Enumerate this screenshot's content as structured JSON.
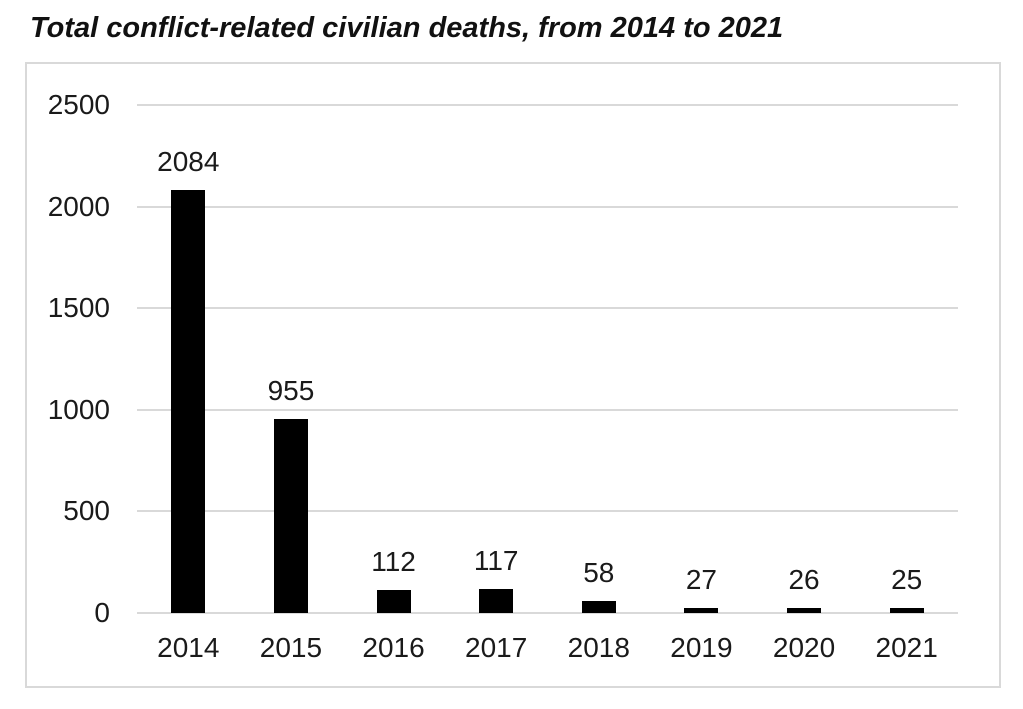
{
  "page": {
    "background_color": "#ffffff"
  },
  "chart_data": {
    "type": "bar",
    "title": "Total conflict-related civilian deaths, from 2014 to 2021",
    "categories": [
      "2014",
      "2015",
      "2016",
      "2017",
      "2018",
      "2019",
      "2020",
      "2021"
    ],
    "values": [
      2084,
      955,
      112,
      117,
      58,
      27,
      26,
      25
    ],
    "data_labels": [
      "2084",
      "955",
      "112",
      "117",
      "58",
      "27",
      "26",
      "25"
    ],
    "xlabel": "",
    "ylabel": "",
    "ylim": [
      0,
      2500
    ],
    "yticks": [
      0,
      500,
      1000,
      1500,
      2000,
      2500
    ],
    "grid": "horizontal",
    "legend": "none",
    "bar_color": "#000000",
    "gridline_color": "#d9d9d9",
    "frame_border_color": "#d9d9d9",
    "text_color": "#1a1a1a",
    "title_color": "#111111"
  }
}
